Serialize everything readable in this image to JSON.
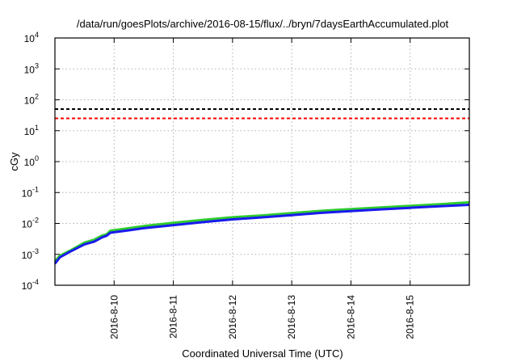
{
  "chart_data": {
    "type": "line",
    "title": "/data/run/goesPlots/archive/2016-08-15/flux/../bryn/7daysEarthAccumulated.plot",
    "xlabel": "Coordinated Universal Time (UTC)",
    "ylabel": "cGy",
    "yscale": "log",
    "ylim": [
      0.0001,
      10000
    ],
    "y_ticks": [
      {
        "value": 0.0001,
        "base": "10",
        "exp": "-4"
      },
      {
        "value": 0.001,
        "base": "10",
        "exp": "-3"
      },
      {
        "value": 0.01,
        "base": "10",
        "exp": "-2"
      },
      {
        "value": 0.1,
        "base": "10",
        "exp": "-1"
      },
      {
        "value": 1,
        "base": "10",
        "exp": "0"
      },
      {
        "value": 10,
        "base": "10",
        "exp": "1"
      },
      {
        "value": 100,
        "base": "10",
        "exp": "2"
      },
      {
        "value": 1000,
        "base": "10",
        "exp": "3"
      },
      {
        "value": 10000,
        "base": "10",
        "exp": "4"
      }
    ],
    "xlim": [
      "2016-08-09T00:00",
      "2016-08-16T00:00"
    ],
    "x_ticks": [
      "2016-8-10",
      "2016-8-11",
      "2016-8-12",
      "2016-8-13",
      "2016-8-14",
      "2016-8-15"
    ],
    "grid": true,
    "reference_lines": [
      {
        "value": 50,
        "color": "#000000",
        "style": "dashed"
      },
      {
        "value": 25,
        "color": "#ff0000",
        "style": "dashed"
      }
    ],
    "series": [
      {
        "color": "#2ecc2e",
        "x": [
          "2016-08-09T00:00",
          "2016-08-09T02:00",
          "2016-08-09T06:00",
          "2016-08-09T12:00",
          "2016-08-09T16:00",
          "2016-08-09T19:00",
          "2016-08-09T21:00",
          "2016-08-09T22:30",
          "2016-08-10T06:00",
          "2016-08-10T12:00",
          "2016-08-11T00:00",
          "2016-08-11T12:00",
          "2016-08-12T00:00",
          "2016-08-12T12:00",
          "2016-08-13T00:00",
          "2016-08-13T12:00",
          "2016-08-14T00:00",
          "2016-08-14T12:00",
          "2016-08-15T00:00",
          "2016-08-15T12:00",
          "2016-08-16T00:00"
        ],
        "y": [
          0.0006,
          0.0009,
          0.0013,
          0.0024,
          0.003,
          0.004,
          0.0045,
          0.0058,
          0.007,
          0.0082,
          0.0105,
          0.013,
          0.0158,
          0.0182,
          0.0215,
          0.0255,
          0.029,
          0.033,
          0.037,
          0.042,
          0.048
        ]
      },
      {
        "color": "#1a1aee",
        "x": [
          "2016-08-09T00:00",
          "2016-08-09T02:00",
          "2016-08-09T06:00",
          "2016-08-09T12:00",
          "2016-08-09T16:00",
          "2016-08-09T19:00",
          "2016-08-09T21:00",
          "2016-08-09T22:30",
          "2016-08-10T06:00",
          "2016-08-10T12:00",
          "2016-08-11T00:00",
          "2016-08-11T12:00",
          "2016-08-12T00:00",
          "2016-08-12T12:00",
          "2016-08-13T00:00",
          "2016-08-13T12:00",
          "2016-08-14T00:00",
          "2016-08-14T12:00",
          "2016-08-15T00:00",
          "2016-08-15T12:00",
          "2016-08-16T00:00"
        ],
        "y": [
          0.0005,
          0.0008,
          0.0012,
          0.0021,
          0.0026,
          0.0035,
          0.004,
          0.005,
          0.006,
          0.007,
          0.0088,
          0.011,
          0.0135,
          0.0157,
          0.0185,
          0.022,
          0.025,
          0.0285,
          0.032,
          0.036,
          0.04
        ]
      }
    ]
  }
}
